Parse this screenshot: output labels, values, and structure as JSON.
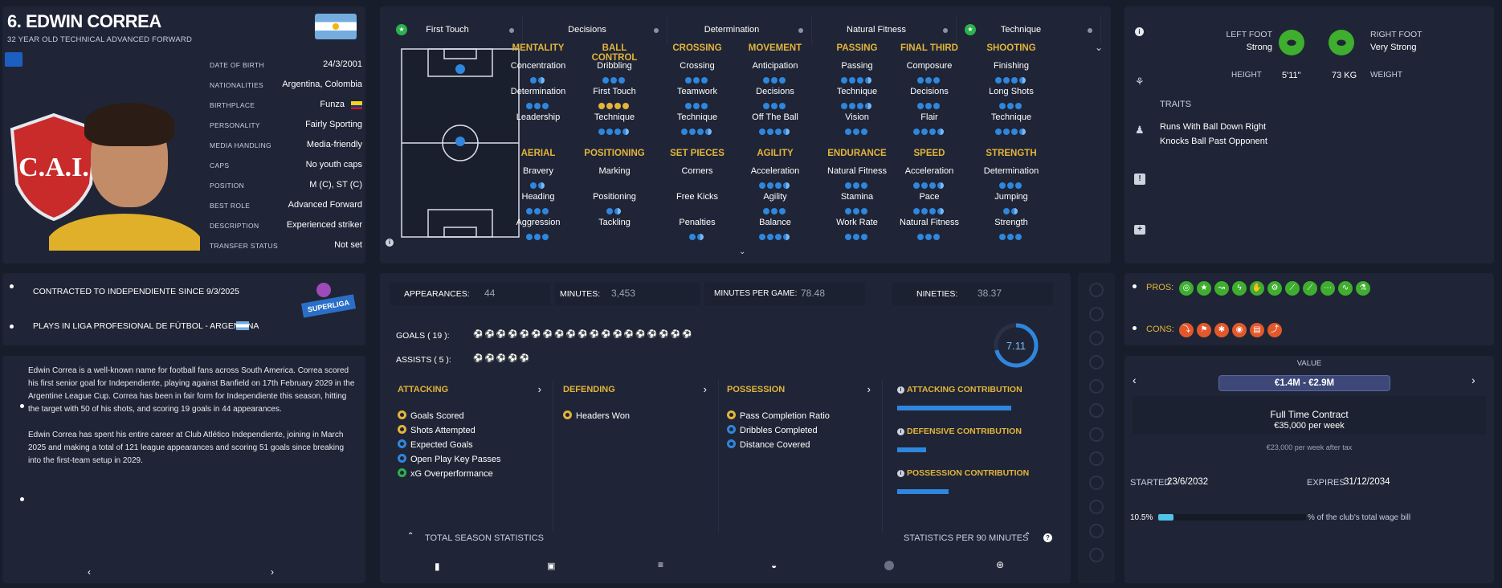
{
  "player": {
    "title": "6. EDWIN CORREA",
    "subtitle": "32 YEAR OLD TECHNICAL ADVANCED FORWARD",
    "club_abbr": "C.A.I."
  },
  "info": [
    {
      "k": "DATE OF BIRTH",
      "v": "24/3/2001"
    },
    {
      "k": "NATIONALITIES",
      "v": "Argentina, Colombia"
    },
    {
      "k": "BIRTHPLACE",
      "v": "Funza"
    },
    {
      "k": "PERSONALITY",
      "v": "Fairly Sporting"
    },
    {
      "k": "MEDIA HANDLING",
      "v": "Media-friendly"
    },
    {
      "k": "CAPS",
      "v": "No youth caps"
    },
    {
      "k": "POSITION",
      "v": "M (C), ST (C)"
    },
    {
      "k": "BEST ROLE",
      "v": "Advanced Forward"
    },
    {
      "k": "DESCRIPTION",
      "v": "Experienced striker"
    },
    {
      "k": "TRANSFER STATUS",
      "v": "Not set"
    }
  ],
  "tabs": [
    "First Touch",
    "Decisions",
    "Determination",
    "Natural Fitness",
    "Technique"
  ],
  "attributes_top": [
    {
      "h": "MENTALITY",
      "items": [
        [
          "Concentration",
          2,
          "b"
        ],
        [
          "Determination",
          3,
          "b"
        ],
        [
          "Leadership",
          0,
          ""
        ]
      ]
    },
    {
      "h": "BALL CONTROL",
      "items": [
        [
          "Dribbling",
          3,
          "b"
        ],
        [
          "First Touch",
          4,
          "g"
        ],
        [
          "Technique",
          4,
          "b"
        ]
      ]
    },
    {
      "h": "CROSSING",
      "items": [
        [
          "Crossing",
          3,
          "b"
        ],
        [
          "Teamwork",
          3,
          "b"
        ],
        [
          "Technique",
          4,
          "b"
        ]
      ]
    },
    {
      "h": "MOVEMENT",
      "items": [
        [
          "Anticipation",
          3,
          "b"
        ],
        [
          "Decisions",
          3,
          "b"
        ],
        [
          "Off The Ball",
          4,
          "b"
        ]
      ]
    },
    {
      "h": "PASSING",
      "items": [
        [
          "Passing",
          4,
          "b"
        ],
        [
          "Technique",
          4,
          "b"
        ],
        [
          "Vision",
          3,
          "b"
        ]
      ]
    },
    {
      "h": "FINAL THIRD",
      "items": [
        [
          "Composure",
          3,
          "b"
        ],
        [
          "Decisions",
          3,
          "b"
        ],
        [
          "Flair",
          4,
          "b"
        ]
      ]
    },
    {
      "h": "SHOOTING",
      "items": [
        [
          "Finishing",
          4,
          "b"
        ],
        [
          "Long Shots",
          3,
          "b"
        ],
        [
          "Technique",
          4,
          "b"
        ]
      ]
    }
  ],
  "attributes_bottom": [
    {
      "h": "AERIAL",
      "items": [
        [
          "Bravery",
          2,
          "b"
        ],
        [
          "Heading",
          3,
          "b"
        ],
        [
          "Aggression",
          3,
          "b"
        ]
      ]
    },
    {
      "h": "POSITIONING",
      "items": [
        [
          "Marking",
          0,
          ""
        ],
        [
          "Positioning",
          2,
          "b"
        ],
        [
          "Tackling",
          0,
          ""
        ]
      ]
    },
    {
      "h": "SET PIECES",
      "items": [
        [
          "Corners",
          0,
          ""
        ],
        [
          "Free Kicks",
          0,
          ""
        ],
        [
          "Penalties",
          2,
          "b"
        ]
      ]
    },
    {
      "h": "AGILITY",
      "items": [
        [
          "Acceleration",
          4,
          "b"
        ],
        [
          "Agility",
          3,
          "b"
        ],
        [
          "Balance",
          4,
          "b"
        ]
      ]
    },
    {
      "h": "ENDURANCE",
      "items": [
        [
          "Natural Fitness",
          3,
          "b"
        ],
        [
          "Stamina",
          3,
          "b"
        ],
        [
          "Work Rate",
          3,
          "b"
        ]
      ]
    },
    {
      "h": "SPEED",
      "items": [
        [
          "Acceleration",
          4,
          "b"
        ],
        [
          "Pace",
          4,
          "b"
        ],
        [
          "Natural Fitness",
          3,
          "b"
        ]
      ]
    },
    {
      "h": "STRENGTH",
      "items": [
        [
          "Determination",
          3,
          "b"
        ],
        [
          "Jumping",
          2,
          "b"
        ],
        [
          "Strength",
          3,
          "b"
        ]
      ]
    }
  ],
  "career": {
    "contract": "CONTRACTED TO INDEPENDIENTE SINCE 9/3/2025",
    "league": "PLAYS IN LIGA PROFESIONAL DE FÚTBOL - ARGENTINA",
    "league_badge": "SUPERLIGA"
  },
  "bio": {
    "p1": "Edwin Correa is a well-known name for football fans across South America. Correa scored his first senior goal for Independiente, playing against Banfield on 17th February 2029 in the Argentine League Cup. Correa has been in fair form for Independiente this season, hitting the target with 50 of his shots, and scoring 19 goals in 44 appearances.",
    "p2": "Edwin Correa has spent his entire career at Club Atlético Independiente, joining in March 2025 and making a total of 121 league appearances and scoring 51 goals since breaking into the first-team setup in 2029."
  },
  "stats": {
    "appearances_label": "APPEARANCES:",
    "appearances": "44",
    "minutes_label": "MINUTES:",
    "minutes": "3,453",
    "mpg_label": "MINUTES PER GAME:",
    "mpg": "78.48",
    "nineties_label": "NINETIES:",
    "nineties": "38.37",
    "goals_label": "GOALS ( 19 ):",
    "goals": 19,
    "assists_label": "ASSISTS ( 5 ):",
    "assists": 5,
    "rating": "7.11",
    "rating_fraction": 0.71
  },
  "sections": {
    "attacking": {
      "h": "ATTACKING",
      "items": [
        [
          "Goals Scored",
          "gold"
        ],
        [
          "Shots Attempted",
          "gold"
        ],
        [
          "Expected Goals",
          "blue"
        ],
        [
          "Open Play Key Passes",
          "blue"
        ],
        [
          "xG Overperformance",
          "green"
        ]
      ]
    },
    "defending": {
      "h": "DEFENDING",
      "items": [
        [
          "Headers Won",
          "gold"
        ]
      ]
    },
    "possession": {
      "h": "POSSESSION",
      "items": [
        [
          "Pass Completion Ratio",
          "gold"
        ],
        [
          "Dribbles Completed",
          "blue"
        ],
        [
          "Distance Covered",
          "blue"
        ]
      ]
    }
  },
  "contributions": [
    {
      "h": "ATTACKING CONTRIBUTION",
      "v": 0.96
    },
    {
      "h": "DEFENSIVE CONTRIBUTION",
      "v": 0.24
    },
    {
      "h": "POSSESSION CONTRIBUTION",
      "v": 0.43
    }
  ],
  "footer": {
    "left": "TOTAL SEASON STATISTICS",
    "right": "STATISTICS PER 90 MINUTES"
  },
  "physical": {
    "left_foot_label": "LEFT FOOT",
    "left_foot": "Strong",
    "right_foot_label": "RIGHT FOOT",
    "right_foot": "Very Strong",
    "height_label": "HEIGHT",
    "height": "5'11\"",
    "weight": "73 KG",
    "weight_label": "WEIGHT",
    "traits_label": "TRAITS",
    "traits": [
      "Runs With Ball Down Right",
      "Knocks Ball Past Opponent"
    ]
  },
  "pros_label": "PROS:",
  "cons_label": "CONS:",
  "value": {
    "label": "VALUE",
    "range": "€1.4M - €2.9M",
    "contract_type": "Full Time Contract",
    "wage": "€35,000 per week",
    "after_tax": "€23,000 per week after tax",
    "started_label": "STARTED",
    "started": "23/6/2032",
    "expires_label": "EXPIRES",
    "expires": "31/12/2034",
    "wage_pct": "10.5%",
    "wage_pct_value": 0.105,
    "wage_bill_text": "% of the club's total wage bill"
  },
  "colors": {
    "accent": "#e3b43b",
    "blue": "#2f86dd",
    "green": "#3fae2f",
    "orange": "#e3582b"
  }
}
